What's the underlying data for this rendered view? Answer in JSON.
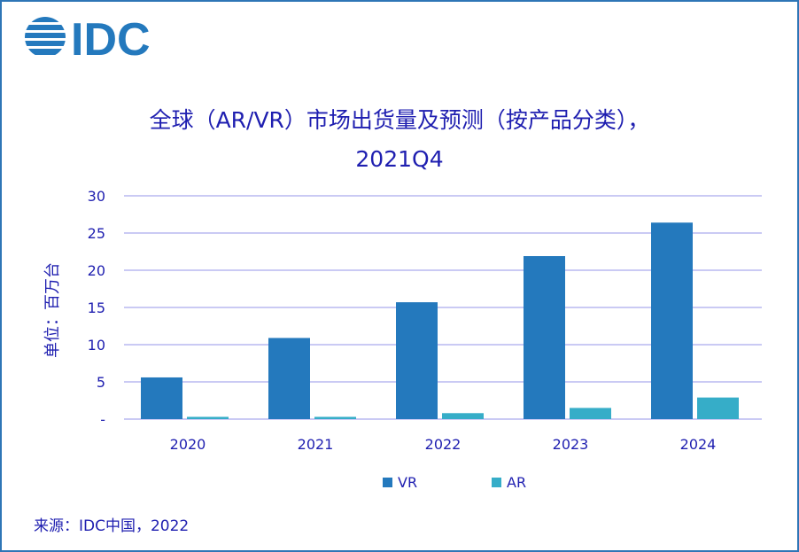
{
  "logo_text": "IDC",
  "chart_data": {
    "type": "bar",
    "title_line1": "全球（AR/VR）市场出货量及预测（按产品分类），",
    "title_line2": "2021Q4",
    "ylabel": "单位：百万台",
    "xlabel": "",
    "categories": [
      "2020",
      "2021",
      "2022",
      "2023",
      "2024"
    ],
    "yticks": [
      "-",
      "5",
      "10",
      "15",
      "20",
      "25",
      "30"
    ],
    "ylim": [
      0,
      30
    ],
    "grid": true,
    "legend_position": "bottom",
    "series": [
      {
        "name": "VR",
        "color": "#2479bd",
        "values": [
          5.6,
          10.9,
          15.7,
          21.9,
          26.4
        ]
      },
      {
        "name": "AR",
        "color": "#36adc8",
        "values": [
          0.3,
          0.3,
          0.8,
          1.5,
          2.9
        ]
      }
    ]
  },
  "source": "来源：IDC中国，2022"
}
